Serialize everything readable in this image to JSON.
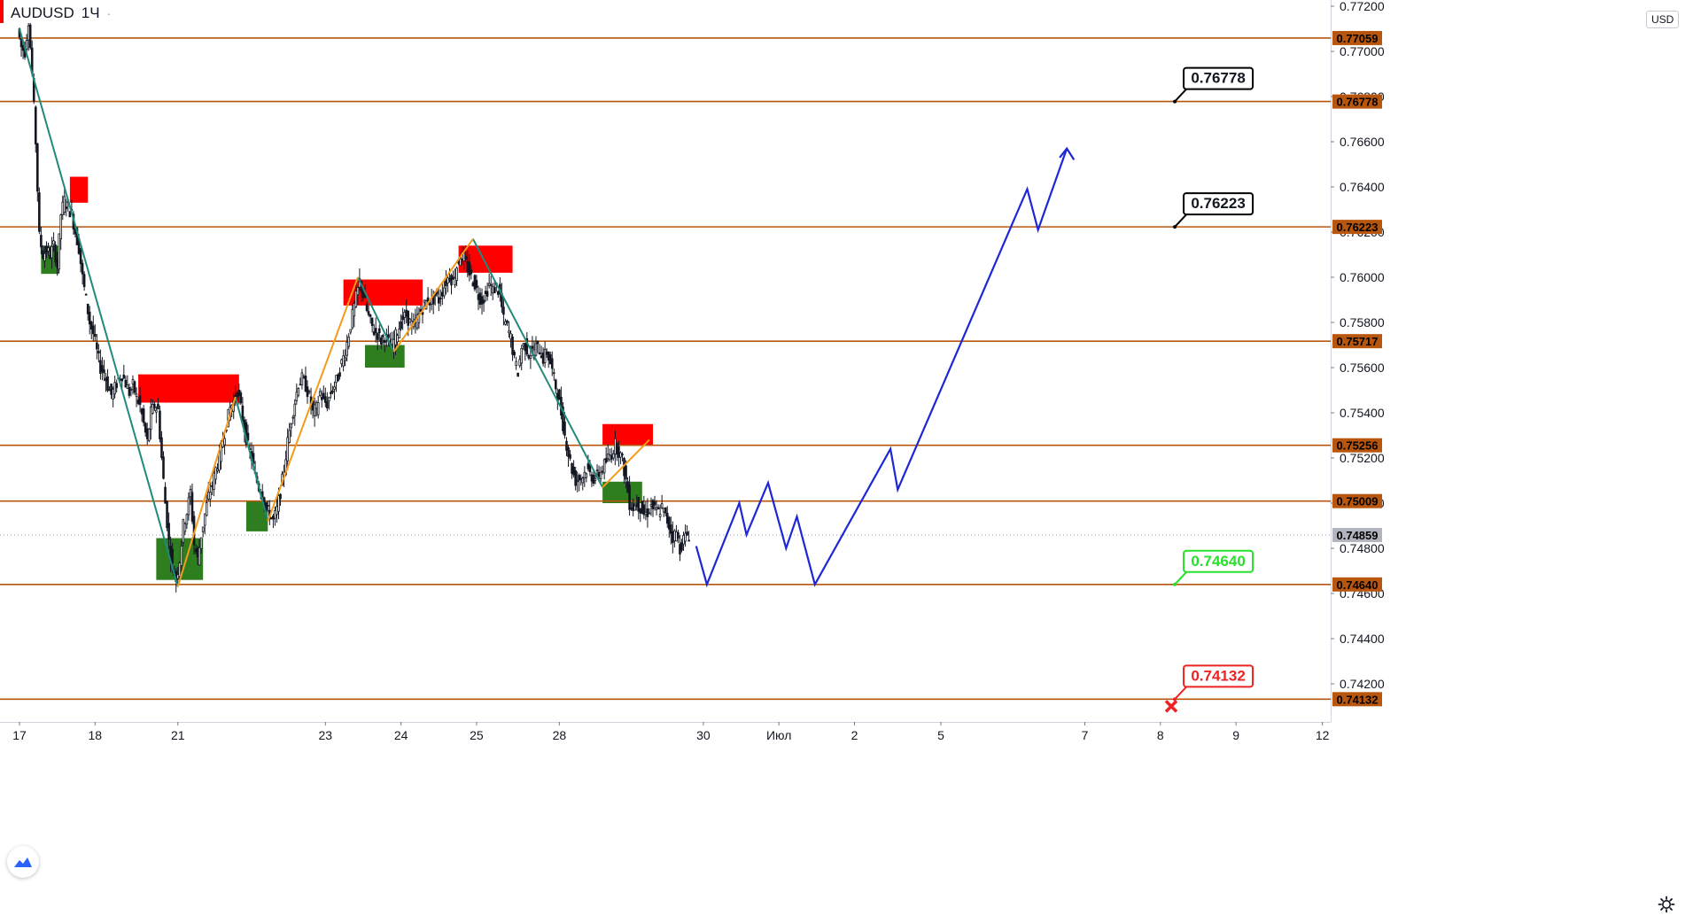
{
  "symbol": {
    "name": "AUDUSD",
    "interval": "1Ч"
  },
  "currency": "USD",
  "colors": {
    "level_line": "#b8560e",
    "level_tag": "#b8560e",
    "current_tag": "#b2b5be",
    "supply_zone": "#ff0000",
    "demand_zone": "#2e7d1e",
    "down_leg": "#20897a",
    "up_leg": "#f59b1c",
    "projection": "#1d27d6",
    "callout_target": "#000000",
    "callout_support": "#27e02a",
    "callout_stop": "#ee2222",
    "candle": "#131722"
  },
  "chart_data": {
    "type": "candlestick",
    "instrument": "AUDUSD",
    "timeframe": "1H",
    "ylim": [
      0.7408,
      0.772
    ],
    "y_ticks": [
      "0.77200",
      "0.77000",
      "0.76800",
      "0.76600",
      "0.76400",
      "0.76200",
      "0.76000",
      "0.75800",
      "0.75600",
      "0.75400",
      "0.75200",
      "0.75000",
      "0.74800",
      "0.74600",
      "0.74400",
      "0.74200"
    ],
    "x_ticks": [
      {
        "label": "17",
        "t": 0
      },
      {
        "label": "18",
        "t": 21
      },
      {
        "label": "21",
        "t": 44
      },
      {
        "label": "23",
        "t": 85
      },
      {
        "label": "24",
        "t": 106
      },
      {
        "label": "25",
        "t": 127
      },
      {
        "label": "28",
        "t": 150
      },
      {
        "label": "30",
        "t": 190
      },
      {
        "label": "Июл",
        "t": 211
      },
      {
        "label": "2",
        "t": 232
      },
      {
        "label": "5",
        "t": 256
      },
      {
        "label": "7",
        "t": 296
      },
      {
        "label": "8",
        "t": 317
      },
      {
        "label": "9",
        "t": 338
      },
      {
        "label": "12",
        "t": 362
      }
    ],
    "levels": [
      {
        "label": "0.77059",
        "value": 0.77059
      },
      {
        "label": "0.76778",
        "value": 0.76778
      },
      {
        "label": "0.76223",
        "value": 0.76223
      },
      {
        "label": "0.75717",
        "value": 0.75717
      },
      {
        "label": "0.75256",
        "value": 0.75256
      },
      {
        "label": "0.75009",
        "value": 0.75009
      },
      {
        "label": "0.74640",
        "value": 0.7464
      },
      {
        "label": "0.74132",
        "value": 0.74132
      }
    ],
    "current_price": {
      "label": "0.74859",
      "value": 0.74859
    },
    "price_path": [
      [
        0,
        0.771
      ],
      [
        1,
        0.7702
      ],
      [
        2,
        0.77
      ],
      [
        3,
        0.7714
      ],
      [
        4,
        0.769
      ],
      [
        5,
        0.766
      ],
      [
        6,
        0.7618
      ],
      [
        7,
        0.761
      ],
      [
        8,
        0.7612
      ],
      [
        9,
        0.761
      ],
      [
        10,
        0.7614
      ],
      [
        11,
        0.7605
      ],
      [
        12,
        0.7628
      ],
      [
        13,
        0.7634
      ],
      [
        14,
        0.7631
      ],
      [
        15,
        0.7628
      ],
      [
        16,
        0.762
      ],
      [
        17,
        0.7613
      ],
      [
        18,
        0.76
      ],
      [
        19,
        0.759
      ],
      [
        20,
        0.758
      ],
      [
        21,
        0.7575
      ],
      [
        22,
        0.7567
      ],
      [
        23,
        0.756
      ],
      [
        24,
        0.7558
      ],
      [
        25,
        0.7552
      ],
      [
        26,
        0.7548
      ],
      [
        27,
        0.7551
      ],
      [
        28,
        0.7555
      ],
      [
        29,
        0.7557
      ],
      [
        30,
        0.7553
      ],
      [
        31,
        0.7549
      ],
      [
        32,
        0.7552
      ],
      [
        33,
        0.7547
      ],
      [
        34,
        0.7543
      ],
      [
        35,
        0.7535
      ],
      [
        36,
        0.7527
      ],
      [
        37,
        0.754
      ],
      [
        38,
        0.7543
      ],
      [
        39,
        0.7541
      ],
      [
        40,
        0.752
      ],
      [
        41,
        0.75
      ],
      [
        42,
        0.7483
      ],
      [
        43,
        0.7472
      ],
      [
        44,
        0.7466
      ],
      [
        45,
        0.7475
      ],
      [
        46,
        0.749
      ],
      [
        47,
        0.7496
      ],
      [
        48,
        0.7505
      ],
      [
        49,
        0.7482
      ],
      [
        50,
        0.7475
      ],
      [
        51,
        0.7486
      ],
      [
        52,
        0.7495
      ],
      [
        53,
        0.7503
      ],
      [
        54,
        0.7508
      ],
      [
        55,
        0.7515
      ],
      [
        56,
        0.752
      ],
      [
        57,
        0.7528
      ],
      [
        58,
        0.7535
      ],
      [
        59,
        0.7542
      ],
      [
        60,
        0.7545
      ],
      [
        61,
        0.755
      ],
      [
        62,
        0.7542
      ],
      [
        63,
        0.7533
      ],
      [
        64,
        0.7525
      ],
      [
        65,
        0.752
      ],
      [
        66,
        0.7512
      ],
      [
        67,
        0.7507
      ],
      [
        68,
        0.7505
      ],
      [
        69,
        0.7497
      ],
      [
        70,
        0.7495
      ],
      [
        71,
        0.7492
      ],
      [
        72,
        0.7497
      ],
      [
        73,
        0.7505
      ],
      [
        74,
        0.7515
      ],
      [
        75,
        0.7527
      ],
      [
        76,
        0.7537
      ],
      [
        77,
        0.7545
      ],
      [
        78,
        0.7553
      ],
      [
        79,
        0.7555
      ],
      [
        80,
        0.7552
      ],
      [
        81,
        0.7547
      ],
      [
        82,
        0.754
      ],
      [
        83,
        0.7542
      ],
      [
        84,
        0.7549
      ],
      [
        85,
        0.7545
      ],
      [
        86,
        0.7544
      ],
      [
        87,
        0.7549
      ],
      [
        88,
        0.7552
      ],
      [
        89,
        0.7556
      ],
      [
        90,
        0.7562
      ],
      [
        91,
        0.7567
      ],
      [
        92,
        0.7575
      ],
      [
        93,
        0.7583
      ],
      [
        94,
        0.7591
      ],
      [
        95,
        0.7598
      ],
      [
        96,
        0.7592
      ],
      [
        97,
        0.7585
      ],
      [
        98,
        0.758
      ],
      [
        99,
        0.7576
      ],
      [
        100,
        0.7575
      ],
      [
        101,
        0.7572
      ],
      [
        102,
        0.7574
      ],
      [
        103,
        0.7571
      ],
      [
        104,
        0.757
      ],
      [
        105,
        0.7574
      ],
      [
        106,
        0.7578
      ],
      [
        107,
        0.7582
      ],
      [
        108,
        0.7583
      ],
      [
        109,
        0.758
      ],
      [
        110,
        0.7578
      ],
      [
        111,
        0.7582
      ],
      [
        112,
        0.7585
      ],
      [
        113,
        0.7588
      ],
      [
        114,
        0.759
      ],
      [
        115,
        0.7589
      ],
      [
        116,
        0.7592
      ],
      [
        117,
        0.759
      ],
      [
        118,
        0.7594
      ],
      [
        119,
        0.7598
      ],
      [
        120,
        0.7601
      ],
      [
        121,
        0.7598
      ],
      [
        122,
        0.7605
      ],
      [
        123,
        0.761
      ],
      [
        124,
        0.7608
      ],
      [
        125,
        0.7604
      ],
      [
        126,
        0.76
      ],
      [
        127,
        0.7597
      ],
      [
        128,
        0.7592
      ],
      [
        129,
        0.759
      ],
      [
        130,
        0.7592
      ],
      [
        131,
        0.7597
      ],
      [
        132,
        0.7594
      ],
      [
        133,
        0.7596
      ],
      [
        134,
        0.7592
      ],
      [
        135,
        0.7581
      ],
      [
        136,
        0.7578
      ],
      [
        137,
        0.7573
      ],
      [
        138,
        0.7563
      ],
      [
        139,
        0.7558
      ],
      [
        140,
        0.7569
      ],
      [
        141,
        0.757
      ],
      [
        142,
        0.7566
      ],
      [
        143,
        0.7567
      ],
      [
        144,
        0.7569
      ],
      [
        145,
        0.7568
      ],
      [
        146,
        0.7564
      ],
      [
        147,
        0.7567
      ],
      [
        148,
        0.7562
      ],
      [
        149,
        0.7555
      ],
      [
        150,
        0.7548
      ],
      [
        151,
        0.754
      ],
      [
        152,
        0.753
      ],
      [
        153,
        0.7522
      ],
      [
        154,
        0.7515
      ],
      [
        155,
        0.751
      ],
      [
        156,
        0.7511
      ],
      [
        157,
        0.7512
      ],
      [
        158,
        0.7515
      ],
      [
        159,
        0.7513
      ],
      [
        160,
        0.7511
      ],
      [
        161,
        0.7512
      ],
      [
        162,
        0.7514
      ],
      [
        163,
        0.7517
      ],
      [
        164,
        0.752
      ],
      [
        165,
        0.7522
      ],
      [
        166,
        0.7526
      ],
      [
        167,
        0.7523
      ],
      [
        168,
        0.7519
      ],
      [
        169,
        0.751
      ],
      [
        170,
        0.75
      ],
      [
        171,
        0.7498
      ],
      [
        172,
        0.75
      ],
      [
        173,
        0.7498
      ],
      [
        174,
        0.7495
      ],
      [
        175,
        0.7496
      ],
      [
        176,
        0.7499
      ],
      [
        177,
        0.7497
      ],
      [
        178,
        0.7496
      ],
      [
        179,
        0.7498
      ],
      [
        180,
        0.7494
      ],
      [
        181,
        0.749
      ],
      [
        182,
        0.7485
      ],
      [
        183,
        0.7487
      ],
      [
        184,
        0.748
      ],
      [
        185,
        0.7484
      ],
      [
        186,
        0.7486
      ]
    ],
    "zones": [
      {
        "kind": "supply",
        "t0": 14,
        "t1": 19,
        "top": 0.76445,
        "bottom": 0.7633
      },
      {
        "kind": "demand",
        "t0": 6,
        "t1": 11,
        "top": 0.7614,
        "bottom": 0.76015
      },
      {
        "kind": "supply",
        "t0": 33,
        "t1": 61,
        "top": 0.7557,
        "bottom": 0.75445
      },
      {
        "kind": "demand",
        "t0": 38,
        "t1": 51,
        "top": 0.74845,
        "bottom": 0.7466
      },
      {
        "kind": "demand",
        "t0": 63,
        "t1": 69,
        "top": 0.7501,
        "bottom": 0.74875
      },
      {
        "kind": "supply",
        "t0": 90,
        "t1": 112,
        "top": 0.7599,
        "bottom": 0.75875
      },
      {
        "kind": "demand",
        "t0": 96,
        "t1": 107,
        "top": 0.757,
        "bottom": 0.756
      },
      {
        "kind": "supply",
        "t0": 122,
        "t1": 137,
        "top": 0.7614,
        "bottom": 0.7602
      },
      {
        "kind": "supply",
        "t0": 162,
        "t1": 176,
        "top": 0.7535,
        "bottom": 0.75255
      },
      {
        "kind": "demand",
        "t0": 162,
        "t1": 173,
        "top": 0.75095,
        "bottom": 0.75
      }
    ],
    "down_legs": [
      [
        [
          0,
          0.771
        ],
        [
          44,
          0.7463
        ]
      ],
      [
        [
          60,
          0.7547
        ],
        [
          69,
          0.7492
        ]
      ],
      [
        [
          94,
          0.76
        ],
        [
          104,
          0.7567
        ]
      ],
      [
        [
          126,
          0.7617
        ],
        [
          162,
          0.7507
        ]
      ]
    ],
    "up_legs": [
      [
        [
          44,
          0.7463
        ],
        [
          60,
          0.7547
        ]
      ],
      [
        [
          69,
          0.7492
        ],
        [
          94,
          0.76
        ]
      ],
      [
        [
          104,
          0.7567
        ],
        [
          126,
          0.7617
        ]
      ],
      [
        [
          162,
          0.7507
        ],
        [
          175,
          0.7528
        ]
      ]
    ],
    "projection": [
      [
        188,
        0.7481
      ],
      [
        191,
        0.7464
      ],
      [
        200,
        0.75
      ],
      [
        202,
        0.7486
      ],
      [
        208,
        0.7509
      ],
      [
        213,
        0.748
      ],
      [
        216,
        0.7494
      ],
      [
        221,
        0.7464
      ],
      [
        242,
        0.7524
      ],
      [
        244,
        0.7506
      ],
      [
        280,
        0.7639
      ],
      [
        283,
        0.7621
      ],
      [
        291,
        0.7657
      ]
    ],
    "projection_arrow": [
      [
        289,
        0.7653
      ],
      [
        291,
        0.7657
      ],
      [
        293,
        0.7652
      ]
    ],
    "callouts": [
      {
        "label": "0.76778",
        "value": 0.76778,
        "kind": "target"
      },
      {
        "label": "0.76223",
        "value": 0.76223,
        "kind": "target"
      },
      {
        "label": "0.74640",
        "value": 0.7464,
        "kind": "support"
      },
      {
        "label": "0.74132",
        "value": 0.74132,
        "kind": "stop"
      }
    ],
    "stop_marker_value": 0.74132,
    "grid": false,
    "title": "",
    "xlabel": "",
    "ylabel": ""
  }
}
